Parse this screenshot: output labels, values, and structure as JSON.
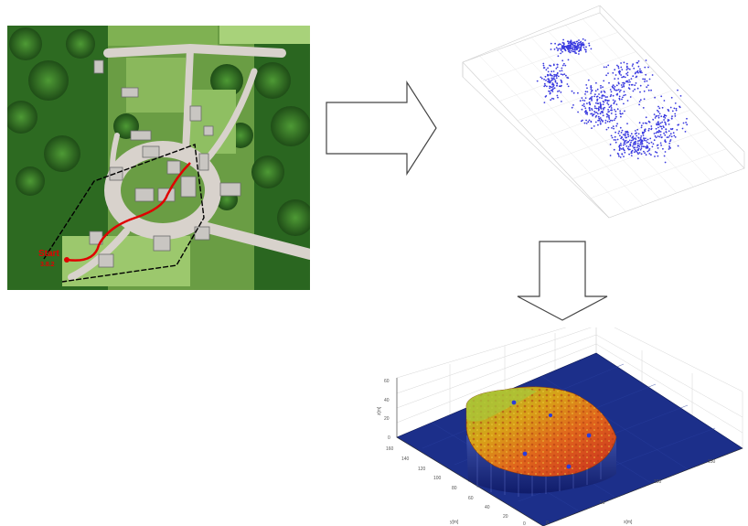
{
  "aerial_map": {
    "start_label": "Start",
    "start_sublabel": "3.8.2"
  },
  "point_cloud": {
    "point_color": "#3a3adf"
  },
  "surface_plot": {
    "z_ticks": [
      "60",
      "40",
      "20",
      "0"
    ],
    "y_ticks": [
      "160",
      "140",
      "120",
      "100",
      "80",
      "60",
      "40",
      "20",
      "0"
    ],
    "x_ticks": [
      "0",
      "50",
      "100",
      "150"
    ],
    "z_label": "z[m]",
    "y_label": "y[m]",
    "x_label": "x[m]",
    "base_color": "#1c2f8a"
  }
}
